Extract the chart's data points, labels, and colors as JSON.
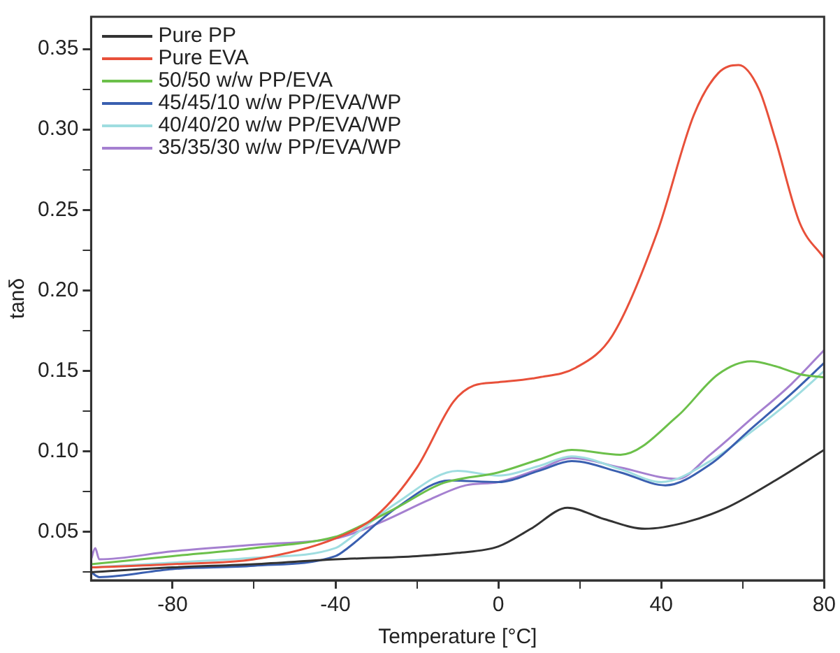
{
  "chart_data": {
    "type": "line",
    "xlabel": "Temperature [°C]",
    "ylabel": "tanδ",
    "xlim": [
      -100,
      80
    ],
    "ylim": [
      0.02,
      0.37
    ],
    "xticks": [
      -80,
      {
        "value": -60,
        "label": null
      },
      -40,
      {
        "value": -20,
        "label": null
      },
      0,
      {
        "value": 20,
        "label": null
      },
      40,
      {
        "value": 60,
        "label": null
      },
      80
    ],
    "yticks": [
      {
        "value": 0.025,
        "label": null
      },
      0.05,
      {
        "value": 0.075,
        "label": null
      },
      {
        "value": 0.1,
        "label": "0.10"
      },
      {
        "value": 0.125,
        "label": null
      },
      0.15,
      {
        "value": 0.175,
        "label": null
      },
      {
        "value": 0.2,
        "label": "0.20"
      },
      {
        "value": 0.225,
        "label": null
      },
      0.25,
      {
        "value": 0.275,
        "label": null
      },
      {
        "value": 0.3,
        "label": "0.30"
      },
      {
        "value": 0.325,
        "label": null
      },
      0.35
    ],
    "grid": false,
    "legend": "top left",
    "marker": "none",
    "line_style": "solid",
    "series": [
      {
        "name": "Pure PP",
        "color": "#333333",
        "x": [
          -100,
          -80,
          -60,
          -40,
          -20,
          -10,
          0,
          8,
          17,
          26,
          36,
          46,
          56,
          68,
          80
        ],
        "values": [
          0.025,
          0.028,
          0.03,
          0.033,
          0.035,
          0.037,
          0.041,
          0.052,
          0.065,
          0.058,
          0.052,
          0.056,
          0.065,
          0.082,
          0.101
        ]
      },
      {
        "name": "Pure EVA",
        "color": "#e8503a",
        "x": [
          -100,
          -80,
          -60,
          -40,
          -30,
          -20,
          -11,
          -6,
          0,
          10,
          19,
          28,
          39,
          48,
          54,
          59,
          64,
          68,
          74,
          80
        ],
        "values": [
          0.028,
          0.03,
          0.033,
          0.046,
          0.06,
          0.09,
          0.131,
          0.141,
          0.143,
          0.146,
          0.152,
          0.172,
          0.236,
          0.309,
          0.335,
          0.34,
          0.325,
          0.294,
          0.242,
          0.22
        ]
      },
      {
        "name": "50/50 w/w PP/EVA",
        "color": "#6cc04a",
        "x": [
          -100,
          -80,
          -60,
          -40,
          -37,
          -25,
          -14,
          0,
          10,
          18,
          30,
          44,
          54,
          62,
          68,
          74,
          80
        ],
        "values": [
          0.03,
          0.035,
          0.04,
          0.047,
          0.05,
          0.065,
          0.08,
          0.087,
          0.095,
          0.101,
          0.098,
          0.122,
          0.148,
          0.156,
          0.153,
          0.148,
          0.146
        ]
      },
      {
        "name": "45/45/10 w/w PP/EVA/WP",
        "color": "#3a5fb0",
        "x": [
          -100,
          -98,
          -80,
          -60,
          -40,
          -37,
          -25,
          -12,
          0,
          10,
          18,
          30,
          41,
          52,
          62,
          72,
          80
        ],
        "values": [
          0.025,
          0.022,
          0.027,
          0.029,
          0.035,
          0.04,
          0.065,
          0.082,
          0.081,
          0.088,
          0.094,
          0.087,
          0.079,
          0.092,
          0.114,
          0.136,
          0.155
        ]
      },
      {
        "name": "40/40/20 w/w PP/EVA/WP",
        "color": "#9fdde0",
        "x": [
          -100,
          -80,
          -60,
          -40,
          -37,
          -25,
          -10,
          0,
          10,
          18,
          30,
          40,
          52,
          62,
          72,
          80
        ],
        "values": [
          0.028,
          0.031,
          0.034,
          0.04,
          0.045,
          0.068,
          0.088,
          0.085,
          0.091,
          0.097,
          0.089,
          0.081,
          0.094,
          0.112,
          0.132,
          0.15
        ]
      },
      {
        "name": "35/35/30 w/w PP/EVA/WP",
        "color": "#a580d0",
        "x": [
          -100,
          -99,
          -98,
          -80,
          -60,
          -40,
          -37,
          -28,
          -17,
          -8,
          0,
          10,
          18,
          30,
          44,
          52,
          62,
          72,
          80
        ],
        "values": [
          0.033,
          0.04,
          0.033,
          0.038,
          0.042,
          0.046,
          0.048,
          0.057,
          0.07,
          0.079,
          0.081,
          0.089,
          0.096,
          0.09,
          0.083,
          0.098,
          0.12,
          0.142,
          0.163
        ]
      }
    ]
  }
}
